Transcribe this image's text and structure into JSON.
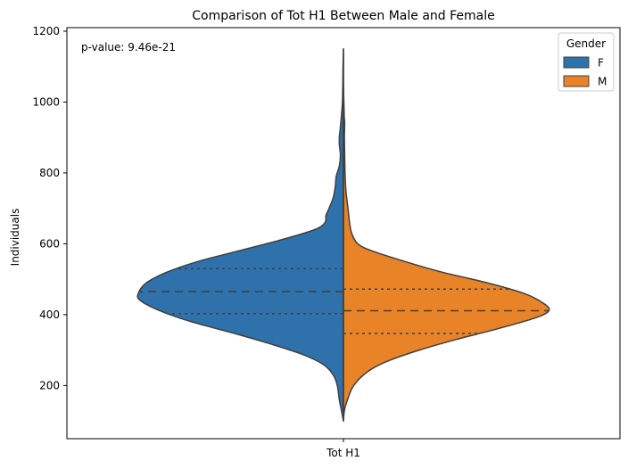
{
  "chart_data": {
    "type": "violin",
    "title": "Comparison of Tot H1 Between Male and Female",
    "xlabel": "",
    "ylabel": "Individuals",
    "categories": [
      "Tot H1"
    ],
    "ylim": [
      50,
      1210
    ],
    "yticks": [
      200,
      400,
      600,
      800,
      1000,
      1200
    ],
    "annotation": "p-value: 9.46e-21",
    "legend": {
      "title": "Gender",
      "position": "top-right",
      "entries": [
        {
          "label": "F",
          "color": "#2f72ab"
        },
        {
          "label": "M",
          "color": "#e98327"
        }
      ]
    },
    "series": [
      {
        "name": "F",
        "side": "left",
        "color": "#2f72ab",
        "quartiles": {
          "q1": 403,
          "median": 465,
          "q3": 530
        },
        "density_profile": [
          [
            100,
            0.0
          ],
          [
            130,
            0.01
          ],
          [
            160,
            0.02
          ],
          [
            200,
            0.03
          ],
          [
            230,
            0.05
          ],
          [
            260,
            0.1
          ],
          [
            290,
            0.21
          ],
          [
            320,
            0.37
          ],
          [
            350,
            0.55
          ],
          [
            380,
            0.74
          ],
          [
            410,
            0.89
          ],
          [
            440,
            0.99
          ],
          [
            460,
            1.0
          ],
          [
            490,
            0.96
          ],
          [
            520,
            0.86
          ],
          [
            550,
            0.71
          ],
          [
            580,
            0.51
          ],
          [
            610,
            0.31
          ],
          [
            640,
            0.14
          ],
          [
            660,
            0.09
          ],
          [
            680,
            0.085
          ],
          [
            700,
            0.07
          ],
          [
            730,
            0.05
          ],
          [
            760,
            0.04
          ],
          [
            790,
            0.035
          ],
          [
            820,
            0.02
          ],
          [
            850,
            0.015
          ],
          [
            880,
            0.02
          ],
          [
            900,
            0.02
          ],
          [
            930,
            0.015
          ],
          [
            960,
            0.01
          ],
          [
            1000,
            0.005
          ],
          [
            1050,
            0.003
          ],
          [
            1100,
            0.002
          ],
          [
            1150,
            0.0
          ]
        ]
      },
      {
        "name": "M",
        "side": "right",
        "color": "#e98327",
        "quartiles": {
          "q1": 347,
          "median": 411,
          "q3": 472
        },
        "density_profile": [
          [
            100,
            0.0
          ],
          [
            130,
            0.005
          ],
          [
            160,
            0.02
          ],
          [
            200,
            0.05
          ],
          [
            240,
            0.12
          ],
          [
            270,
            0.22
          ],
          [
            300,
            0.37
          ],
          [
            330,
            0.55
          ],
          [
            360,
            0.75
          ],
          [
            390,
            0.93
          ],
          [
            410,
            1.0
          ],
          [
            430,
            0.98
          ],
          [
            460,
            0.88
          ],
          [
            490,
            0.7
          ],
          [
            520,
            0.48
          ],
          [
            550,
            0.3
          ],
          [
            580,
            0.14
          ],
          [
            600,
            0.07
          ],
          [
            630,
            0.04
          ],
          [
            660,
            0.03
          ],
          [
            700,
            0.022
          ],
          [
            750,
            0.012
          ],
          [
            800,
            0.008
          ],
          [
            850,
            0.006
          ],
          [
            900,
            0.005
          ],
          [
            940,
            0.006
          ],
          [
            960,
            0.004
          ],
          [
            1000,
            0.002
          ],
          [
            1050,
            0.0
          ]
        ]
      }
    ]
  }
}
